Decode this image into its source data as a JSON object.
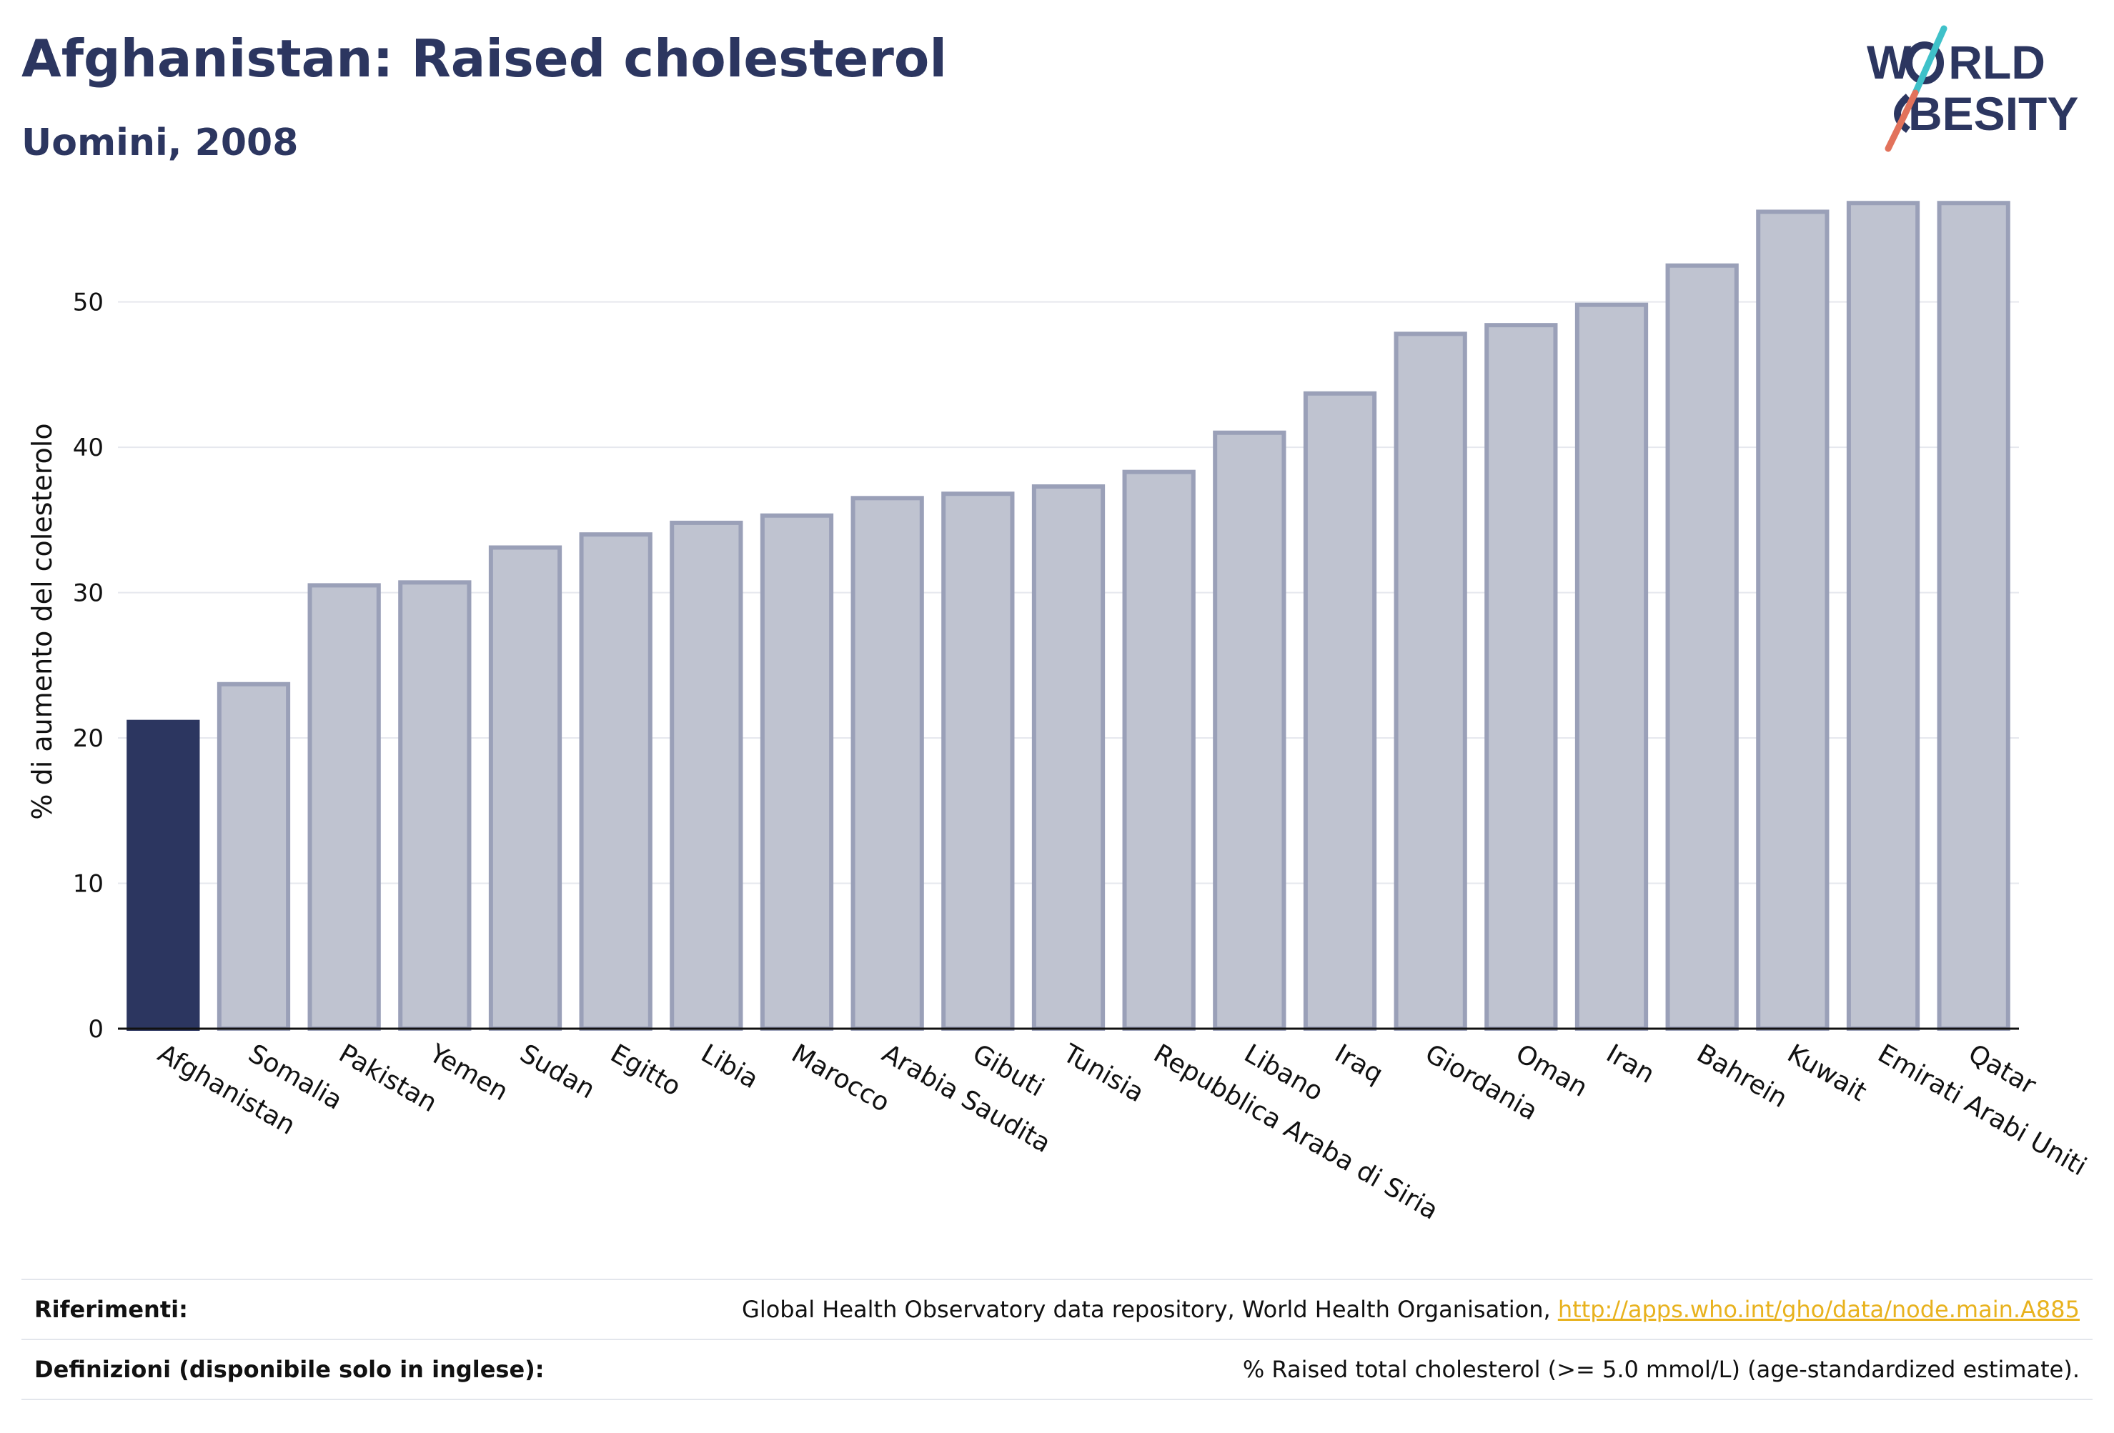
{
  "header": {
    "title": "Afghanistan: Raised cholesterol",
    "subtitle": "Uomini, 2008"
  },
  "logo": {
    "line1": "WORLD",
    "line2": "OBESITY",
    "line1_pre": "W",
    "line1_post": "RLD",
    "line2_post": "BESITY",
    "slash_colors": [
      "#3fc1c9",
      "#e2725b"
    ]
  },
  "chart_data": {
    "type": "bar",
    "title": "",
    "xlabel": "",
    "ylabel": "% di aumento del colesterolo",
    "ylim": [
      0,
      57.5
    ],
    "yticks": [
      0,
      10,
      20,
      30,
      40,
      50
    ],
    "grid": true,
    "highlight_category": "Afghanistan",
    "colors": {
      "highlight": "#2c3660",
      "bar_fill": "#bfc3d0",
      "bar_stroke": "#9aa0b8",
      "grid": "#e6e8ee"
    },
    "categories": [
      "Afghanistan",
      "Somalia",
      "Pakistan",
      "Yemen",
      "Sudan",
      "Egitto",
      "Libia",
      "Marocco",
      "Arabia Saudita",
      "Gibuti",
      "Tunisia",
      "Repubblica Araba di Siria",
      "Libano",
      "Iraq",
      "Giordania",
      "Oman",
      "Iran",
      "Bahrein",
      "Kuwait",
      "Emirati Arabi Uniti",
      "Qatar"
    ],
    "values": [
      21.1,
      23.7,
      30.5,
      30.7,
      33.1,
      34.0,
      34.8,
      35.3,
      36.5,
      36.8,
      37.3,
      38.3,
      41.0,
      43.7,
      47.8,
      48.4,
      49.8,
      52.5,
      56.2,
      56.8,
      56.8
    ]
  },
  "footer": {
    "references_label": "Riferimenti:",
    "references_text": "Global Health Observatory data repository, World Health Organisation, ",
    "references_link": "http://apps.who.int/gho/data/node.main.A885",
    "definitions_label": "Definizioni (disponibile solo in inglese):",
    "definitions_text": "% Raised total cholesterol (>= 5.0 mmol/L) (age-standardized estimate)."
  }
}
